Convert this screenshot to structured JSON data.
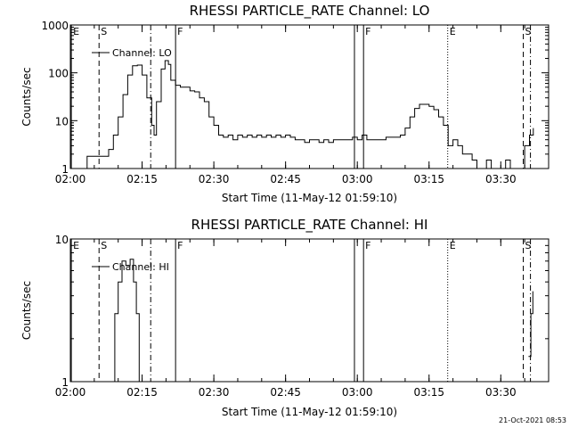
{
  "footer": {
    "timestamp": "21-Oct-2021 08:53"
  },
  "chart_data": [
    {
      "type": "line",
      "title": "RHESSI PARTICLE_RATE Channel: LO",
      "xlabel": "Start Time (11-May-12 01:59:10)",
      "ylabel": "Counts/sec",
      "yscale": "log",
      "xlim_min": [
        0,
        100
      ],
      "ylim": [
        1,
        1000
      ],
      "xticks": [
        {
          "v": 0,
          "label": "02:00"
        },
        {
          "v": 15,
          "label": "02:15"
        },
        {
          "v": 30,
          "label": "02:30"
        },
        {
          "v": 45,
          "label": "02:45"
        },
        {
          "v": 60,
          "label": "03:00"
        },
        {
          "v": 75,
          "label": "03:15"
        },
        {
          "v": 90,
          "label": "03:30"
        }
      ],
      "yticks": [
        {
          "v": 1,
          "label": "1"
        },
        {
          "v": 10,
          "label": "10"
        },
        {
          "v": 100,
          "label": "100"
        },
        {
          "v": 1000,
          "label": "1000"
        }
      ],
      "legend": "Channel: LO",
      "legend_position": "top-left",
      "markers": [
        {
          "t": 0.2,
          "label": "E",
          "style": "solid"
        },
        {
          "t": 6.0,
          "label": "S",
          "style": "dashed"
        },
        {
          "t": 16.8,
          "label": "",
          "style": "dashdot"
        },
        {
          "t": 22.0,
          "label": "F",
          "style": "solid"
        },
        {
          "t": 59.4,
          "label": "",
          "style": "solid"
        },
        {
          "t": 61.3,
          "label": "F",
          "style": "solid"
        },
        {
          "t": 78.9,
          "label": "E",
          "style": "dotted"
        },
        {
          "t": 94.7,
          "label": "S",
          "style": "dashed"
        },
        {
          "t": 96.2,
          "label": "",
          "style": "dashdot"
        }
      ],
      "series": [
        {
          "points": [
            [
              3.3,
              1
            ],
            [
              3.5,
              1.8
            ],
            [
              7,
              1.8
            ],
            [
              8,
              2.5
            ],
            [
              9,
              5
            ],
            [
              10,
              12
            ],
            [
              11,
              35
            ],
            [
              12,
              90
            ],
            [
              13,
              140
            ],
            [
              14,
              145
            ],
            [
              15,
              90
            ],
            [
              16,
              30
            ],
            [
              17,
              8
            ],
            [
              17.5,
              5
            ],
            [
              18,
              25
            ],
            [
              19,
              120
            ],
            [
              19.8,
              180
            ],
            [
              20.5,
              150
            ],
            [
              21,
              70
            ],
            [
              22,
              55
            ],
            [
              23,
              50
            ],
            [
              24,
              50
            ],
            [
              25,
              42
            ],
            [
              26,
              40
            ],
            [
              27,
              30
            ],
            [
              28,
              25
            ],
            [
              29,
              12
            ],
            [
              30,
              8
            ],
            [
              31,
              5
            ],
            [
              32,
              4.5
            ],
            [
              33,
              5
            ],
            [
              34,
              4
            ],
            [
              35,
              5
            ],
            [
              36,
              4.5
            ],
            [
              37,
              5
            ],
            [
              38,
              4.5
            ],
            [
              39,
              5
            ],
            [
              40,
              4.5
            ],
            [
              41,
              5
            ],
            [
              42,
              4.5
            ],
            [
              43,
              5
            ],
            [
              44,
              4.5
            ],
            [
              45,
              5
            ],
            [
              46,
              4.5
            ],
            [
              47,
              4
            ],
            [
              48,
              4
            ],
            [
              49,
              3.5
            ],
            [
              50,
              4
            ],
            [
              51,
              4
            ],
            [
              52,
              3.5
            ],
            [
              53,
              4
            ],
            [
              54,
              3.5
            ],
            [
              55,
              4
            ],
            [
              56,
              4
            ],
            [
              57,
              4
            ],
            [
              58,
              4
            ],
            [
              59,
              4.5
            ],
            [
              60,
              4
            ],
            [
              61,
              5
            ],
            [
              62,
              4
            ],
            [
              63,
              4
            ],
            [
              64,
              4
            ],
            [
              65,
              4
            ],
            [
              66,
              4.5
            ],
            [
              67,
              4.5
            ],
            [
              68,
              4.5
            ],
            [
              69,
              5
            ],
            [
              70,
              7
            ],
            [
              71,
              12
            ],
            [
              72,
              18
            ],
            [
              73,
              22
            ],
            [
              74,
              22
            ],
            [
              75,
              20
            ],
            [
              76,
              17
            ],
            [
              77,
              12
            ],
            [
              78,
              8
            ],
            [
              79,
              3
            ],
            [
              80,
              4
            ],
            [
              81,
              3
            ],
            [
              82,
              2
            ],
            [
              83,
              2
            ],
            [
              84,
              1.5
            ],
            [
              85,
              1
            ],
            [
              86,
              1
            ],
            [
              87,
              1.5
            ],
            [
              88,
              1
            ],
            [
              89,
              1
            ],
            [
              90,
              1
            ],
            [
              91,
              1.5
            ],
            [
              92,
              1
            ],
            [
              93,
              1
            ],
            [
              94,
              1
            ],
            [
              95,
              3
            ],
            [
              96,
              5
            ],
            [
              96.8,
              7
            ]
          ]
        }
      ]
    },
    {
      "type": "line",
      "title": "RHESSI PARTICLE_RATE Channel: HI",
      "xlabel": "Start Time (11-May-12 01:59:10)",
      "ylabel": "Counts/sec",
      "yscale": "log",
      "xlim_min": [
        0,
        100
      ],
      "ylim": [
        1,
        10
      ],
      "xticks": [
        {
          "v": 0,
          "label": "02:00"
        },
        {
          "v": 15,
          "label": "02:15"
        },
        {
          "v": 30,
          "label": "02:30"
        },
        {
          "v": 45,
          "label": "02:45"
        },
        {
          "v": 60,
          "label": "03:00"
        },
        {
          "v": 75,
          "label": "03:15"
        },
        {
          "v": 90,
          "label": "03:30"
        }
      ],
      "yticks": [
        {
          "v": 1,
          "label": "1"
        },
        {
          "v": 10,
          "label": "10"
        }
      ],
      "legend": "Channel: HI",
      "legend_position": "top-left",
      "markers": [
        {
          "t": 0.2,
          "label": "E",
          "style": "solid"
        },
        {
          "t": 6.0,
          "label": "S",
          "style": "dashed"
        },
        {
          "t": 16.8,
          "label": "",
          "style": "dashdot"
        },
        {
          "t": 22.0,
          "label": "F",
          "style": "solid"
        },
        {
          "t": 59.4,
          "label": "",
          "style": "solid"
        },
        {
          "t": 61.3,
          "label": "F",
          "style": "solid"
        },
        {
          "t": 78.9,
          "label": "E",
          "style": "dotted"
        },
        {
          "t": 94.7,
          "label": "S",
          "style": "dashed"
        },
        {
          "t": 96.2,
          "label": "",
          "style": "dashdot"
        }
      ],
      "series": [
        {
          "points": [
            [
              8.5,
              1
            ],
            [
              9.3,
              3
            ],
            [
              10,
              5
            ],
            [
              10.8,
              7
            ],
            [
              11.6,
              6.5
            ],
            [
              12.5,
              7.2
            ],
            [
              13.2,
              5
            ],
            [
              13.8,
              3
            ],
            [
              14.4,
              1
            ]
          ]
        },
        {
          "points": [
            [
              95.8,
              1.5
            ],
            [
              96.3,
              3
            ],
            [
              96.7,
              4.3
            ]
          ]
        }
      ]
    }
  ]
}
